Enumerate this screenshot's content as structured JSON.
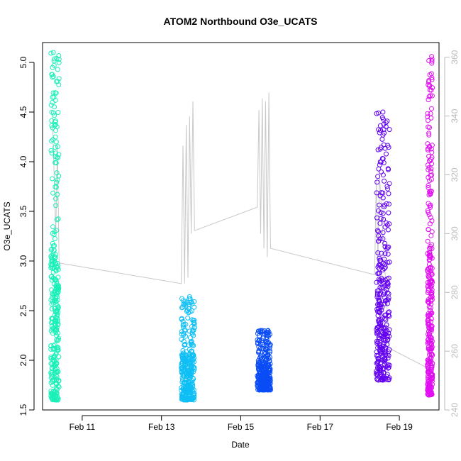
{
  "chart_data": {
    "type": "scatter",
    "title": "ATOM2 Northbound O3e_UCATS",
    "xlabel": "Date",
    "ylabel": "O3e_UCATS",
    "xlim": [
      "2017-02-10T00:00",
      "2017-02-20T00:00"
    ],
    "ylim": [
      1.5,
      5.2
    ],
    "y2lim": [
      240,
      365
    ],
    "x_ticks": [
      {
        "date": "2017-02-11",
        "label": "Feb 11"
      },
      {
        "date": "2017-02-13",
        "label": "Feb 13"
      },
      {
        "date": "2017-02-15",
        "label": "Feb 15"
      },
      {
        "date": "2017-02-17",
        "label": "Feb 17"
      },
      {
        "date": "2017-02-19",
        "label": "Feb 19"
      }
    ],
    "y_ticks": [
      1.5,
      2.0,
      2.5,
      3.0,
      3.5,
      4.0,
      4.5,
      5.0
    ],
    "y2_ticks": [
      240,
      260,
      280,
      300,
      320,
      340,
      360
    ],
    "grid": false,
    "legend": "none",
    "series": [
      {
        "color": "#19f0b8",
        "x_start": "2017-02-10T05:00",
        "x_end": "2017-02-10T10:00",
        "y_range": [
          1.6,
          5.1
        ]
      },
      {
        "color": "#0fbff5",
        "x_start": "2017-02-13T12:00",
        "x_end": "2017-02-13T20:00",
        "y_range": [
          1.6,
          2.64
        ]
      },
      {
        "color": "#0a4cf5",
        "x_start": "2017-02-15T10:00",
        "x_end": "2017-02-15T18:00",
        "y_range": [
          1.7,
          2.3
        ]
      },
      {
        "color": "#6200f0",
        "x_start": "2017-02-18T10:00",
        "x_end": "2017-02-18T18:00",
        "y_range": [
          1.8,
          4.5
        ]
      },
      {
        "color": "#e00ff0",
        "x_start": "2017-02-19T17:00",
        "x_end": "2017-02-19T20:00",
        "y_range": [
          1.65,
          5.06
        ]
      }
    ],
    "secondary_line": {
      "color": "#c8c8c8",
      "axis": "right",
      "points": [
        [
          "2017-02-10T06:00",
          340
        ],
        [
          "2017-02-10T08:00",
          300
        ],
        [
          "2017-02-10T09:00",
          330
        ],
        [
          "2017-02-10T10:00",
          290
        ],
        [
          "2017-02-13T12:00",
          283
        ],
        [
          "2017-02-13T13:00",
          330
        ],
        [
          "2017-02-13T14:00",
          283
        ],
        [
          "2017-02-13T15:00",
          337
        ],
        [
          "2017-02-13T16:00",
          285
        ],
        [
          "2017-02-13T17:00",
          340
        ],
        [
          "2017-02-13T18:00",
          300
        ],
        [
          "2017-02-13T19:00",
          345
        ],
        [
          "2017-02-13T20:00",
          301
        ],
        [
          "2017-02-15T10:00",
          309
        ],
        [
          "2017-02-15T11:00",
          342
        ],
        [
          "2017-02-15T12:00",
          300
        ],
        [
          "2017-02-15T13:00",
          346
        ],
        [
          "2017-02-15T14:00",
          295
        ],
        [
          "2017-02-15T15:00",
          345
        ],
        [
          "2017-02-15T16:00",
          292
        ],
        [
          "2017-02-15T17:00",
          348
        ],
        [
          "2017-02-15T18:00",
          295
        ],
        [
          "2017-02-18T09:00",
          286
        ],
        [
          "2017-02-18T10:00",
          318
        ],
        [
          "2017-02-18T11:00",
          290
        ],
        [
          "2017-02-18T12:00",
          320
        ],
        [
          "2017-02-18T14:00",
          300
        ],
        [
          "2017-02-18T18:00",
          261
        ],
        [
          "2017-02-19T18:00",
          254
        ],
        [
          "2017-02-19T19:00",
          246
        ]
      ]
    }
  }
}
